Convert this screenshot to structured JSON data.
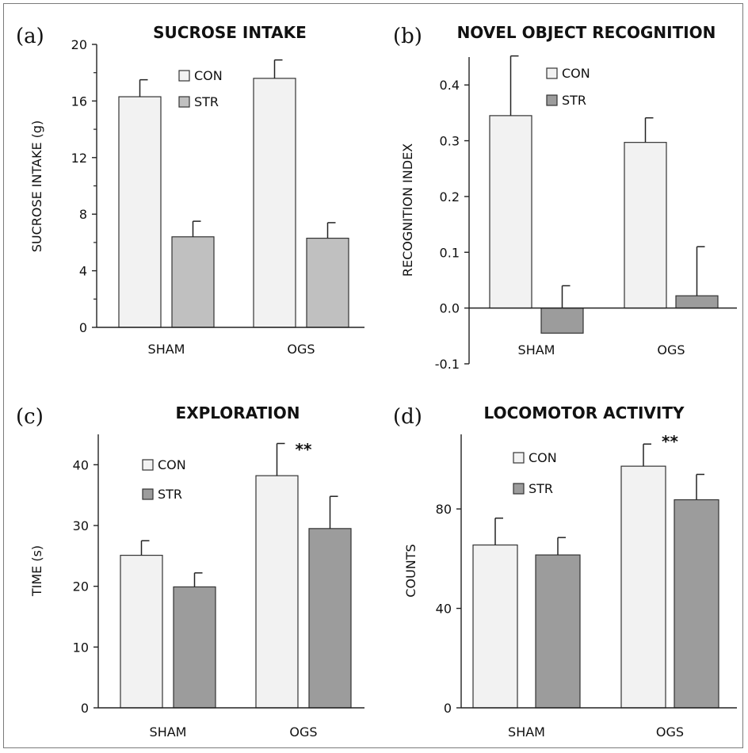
{
  "colors": {
    "axis": "#222222",
    "errorbar": "#222222",
    "bar_stroke": "#333333"
  },
  "chart_data": [
    {
      "panel_label": "(a)",
      "type": "bar",
      "title": "SUCROSE INTAKE",
      "ylabel": "SUCROSE INTAKE (g)",
      "xlabel": "",
      "categories": [
        "SHAM",
        "OGS"
      ],
      "ylim": [
        0,
        20
      ],
      "yticks": [
        0,
        4,
        8,
        12,
        16,
        20
      ],
      "ytick_labels": [
        "0",
        "4",
        "8",
        "12",
        "16",
        "20"
      ],
      "minor_ticks": true,
      "grid": false,
      "legend_position": "top-center",
      "significance": [
        "",
        ""
      ],
      "series": [
        {
          "name": "CON",
          "color": "#f2f2f2",
          "values": [
            16.3,
            17.6
          ],
          "errors": [
            1.2,
            1.3
          ]
        },
        {
          "name": "STR",
          "color": "#c0c0c0",
          "values": [
            6.4,
            6.3
          ],
          "errors": [
            1.1,
            1.1
          ]
        }
      ]
    },
    {
      "panel_label": "(b)",
      "type": "bar",
      "title": "NOVEL OBJECT RECOGNITION",
      "ylabel": "RECOGNITION INDEX",
      "xlabel": "",
      "categories": [
        "SHAM",
        "OGS"
      ],
      "ylim": [
        -0.1,
        0.45
      ],
      "yticks": [
        -0.1,
        0,
        0.1,
        0.2,
        0.3,
        0.4
      ],
      "ytick_labels": [
        "-0.1",
        "0.0",
        "0.1",
        "0.2",
        "0.3",
        "0.4"
      ],
      "minor_ticks": false,
      "grid": false,
      "legend_position": "top-center",
      "significance": [
        "",
        ""
      ],
      "series": [
        {
          "name": "CON",
          "color": "#f2f2f2",
          "values": [
            0.345,
            0.297
          ],
          "errors": [
            0.107,
            0.044
          ]
        },
        {
          "name": "STR",
          "color": "#9c9c9c",
          "values": [
            -0.045,
            0.022
          ],
          "errors": [
            0.085,
            0.088
          ]
        }
      ]
    },
    {
      "panel_label": "(c)",
      "type": "bar",
      "title": "EXPLORATION",
      "ylabel": "TIME (s)",
      "xlabel": "",
      "categories": [
        "SHAM",
        "OGS"
      ],
      "ylim": [
        0,
        45
      ],
      "yticks": [
        0,
        10,
        20,
        30,
        40
      ],
      "ytick_labels": [
        "0",
        "10",
        "20",
        "30",
        "40"
      ],
      "minor_ticks": false,
      "grid": false,
      "legend_position": "top-left",
      "significance": [
        "",
        "**"
      ],
      "series": [
        {
          "name": "CON",
          "color": "#f2f2f2",
          "values": [
            25.1,
            38.2
          ],
          "errors": [
            2.4,
            5.3
          ]
        },
        {
          "name": "STR",
          "color": "#9c9c9c",
          "values": [
            19.9,
            29.5
          ],
          "errors": [
            2.3,
            5.3
          ]
        }
      ]
    },
    {
      "panel_label": "(d)",
      "type": "bar",
      "title": "LOCOMOTOR ACTIVITY",
      "ylabel": "COUNTS",
      "xlabel": "",
      "categories": [
        "SHAM",
        "OGS"
      ],
      "ylim": [
        0,
        110
      ],
      "yticks": [
        0,
        40,
        80
      ],
      "ytick_labels": [
        "0",
        "40",
        "80"
      ],
      "minor_ticks": false,
      "grid": false,
      "legend_position": "top-left",
      "significance": [
        "",
        "**"
      ],
      "series": [
        {
          "name": "CON",
          "color": "#f2f2f2",
          "values": [
            65.5,
            97.2
          ],
          "errors": [
            10.8,
            8.9
          ]
        },
        {
          "name": "STR",
          "color": "#9c9c9c",
          "values": [
            61.5,
            83.7
          ],
          "errors": [
            7.0,
            10.2
          ]
        }
      ]
    }
  ]
}
